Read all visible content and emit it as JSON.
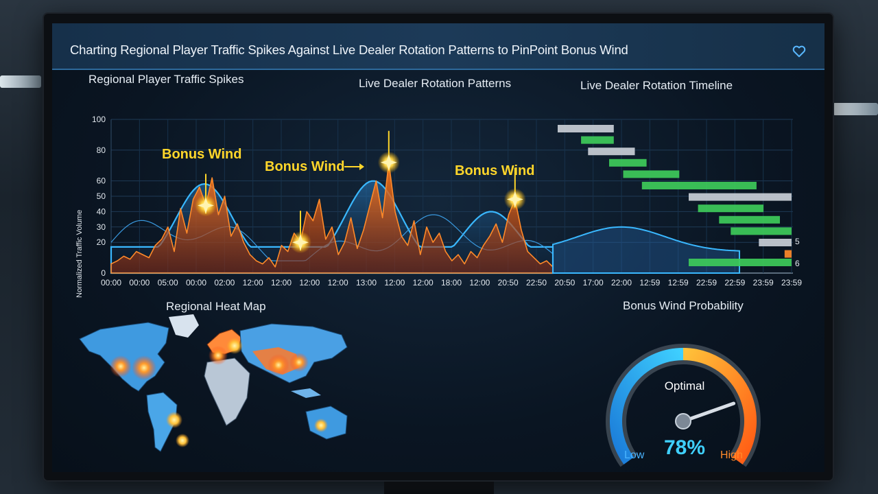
{
  "header": {
    "title": "Charting Regional Player Traffic Spikes Against Live Dealer Rotation Patterns to PinPoint Bonus Wind",
    "icon": "heart-icon"
  },
  "traffic_panel": {
    "title": "Regional Player Traffic Spikes",
    "subtitle": "Live Dealer Rotation Patterns",
    "ylabel": "Normalized Traffic Volume",
    "bonus_labels": [
      "Bonus Wind",
      "Bonus Wind",
      "Bonus Wind"
    ]
  },
  "timeline_panel": {
    "title": "Live Dealer Rotation Timeline",
    "side_numbers": [
      "5",
      "6"
    ]
  },
  "heatmap_panel": {
    "title": "Regional Heat Map"
  },
  "gauge_panel": {
    "title": "Bonus Wind Probability",
    "status": "Optimal",
    "value_text": "78%",
    "value": 0.78,
    "low_label": "Low",
    "high_label": "High"
  },
  "chart_data": {
    "type": "area",
    "y_ticks": [
      0,
      20,
      30,
      40,
      50,
      60,
      80,
      100
    ],
    "x_ticks": [
      "00:00",
      "00:00",
      "05:00",
      "00:00",
      "02:00",
      "12:00",
      "12:00",
      "12:00",
      "12:00",
      "13:00",
      "12:00",
      "12:00",
      "18:00",
      "12:00",
      "20:50",
      "22:50",
      "20:50",
      "17:00",
      "22:00",
      "12:59",
      "12:59",
      "22:59",
      "22:59",
      "23:59",
      "23:59"
    ],
    "series": [
      {
        "values": [
          6,
          8,
          11,
          9,
          14,
          12,
          10,
          18,
          22,
          30,
          14,
          42,
          26,
          48,
          56,
          44,
          62,
          38,
          50,
          24,
          32,
          20,
          12,
          8,
          6,
          10,
          4,
          18,
          14,
          26,
          20,
          40,
          34,
          48,
          22,
          30,
          12,
          20,
          36,
          16,
          28,
          44,
          60,
          36,
          72,
          40,
          24,
          18,
          34,
          12,
          30,
          20,
          26,
          14,
          8,
          12,
          6,
          14,
          10,
          18,
          24,
          32,
          20,
          38,
          48,
          28,
          14,
          10,
          6,
          8,
          4
        ]
      }
    ],
    "highlights": [
      {
        "label": "Bonus Wind",
        "point": 15
      },
      {
        "label": "Bonus Wind",
        "point": 30
      },
      {
        "label": "Bonus Wind",
        "point": 44
      },
      {
        "label": "Bonus Wind",
        "point": 64
      }
    ]
  },
  "timeline_data": {
    "type": "gantt",
    "bars": [
      {
        "start": 0.0,
        "end": 0.24,
        "status": "idle"
      },
      {
        "start": 0.1,
        "end": 0.24,
        "status": "active"
      },
      {
        "start": 0.13,
        "end": 0.33,
        "status": "idle"
      },
      {
        "start": 0.22,
        "end": 0.38,
        "status": "active"
      },
      {
        "start": 0.28,
        "end": 0.52,
        "status": "active"
      },
      {
        "start": 0.36,
        "end": 0.85,
        "status": "active"
      },
      {
        "start": 0.56,
        "end": 1.0,
        "status": "idle"
      },
      {
        "start": 0.6,
        "end": 0.88,
        "status": "active"
      },
      {
        "start": 0.69,
        "end": 0.95,
        "status": "active"
      },
      {
        "start": 0.74,
        "end": 1.0,
        "status": "active"
      },
      {
        "start": 0.86,
        "end": 1.0,
        "status": "idle"
      },
      {
        "start": 0.97,
        "end": 1.0,
        "status": "alert"
      },
      {
        "start": 0.56,
        "end": 1.0,
        "status": "active"
      }
    ],
    "colors": {
      "idle": "#c9ced6",
      "active": "#3ecb5a",
      "alert": "#ff8a2a"
    }
  }
}
